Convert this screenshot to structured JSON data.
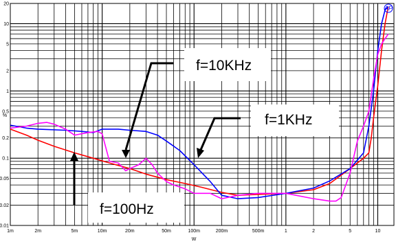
{
  "chart_data": {
    "type": "line",
    "title": "",
    "xlabel": "W",
    "ylabel": "%",
    "x_scale": "log",
    "y_scale": "log",
    "xlim": [
      0.001,
      15
    ],
    "ylim": [
      0.01,
      20
    ],
    "grid": true,
    "x_ticks": [
      {
        "value": 0.001,
        "label": "1m"
      },
      {
        "value": 0.002,
        "label": "2m"
      },
      {
        "value": 0.005,
        "label": "5m"
      },
      {
        "value": 0.01,
        "label": "10m"
      },
      {
        "value": 0.02,
        "label": "20m"
      },
      {
        "value": 0.05,
        "label": "50m"
      },
      {
        "value": 0.1,
        "label": "100m"
      },
      {
        "value": 0.2,
        "label": "200m"
      },
      {
        "value": 0.5,
        "label": "500m"
      },
      {
        "value": 1,
        "label": "1"
      },
      {
        "value": 2,
        "label": "2"
      },
      {
        "value": 5,
        "label": "5"
      },
      {
        "value": 10,
        "label": "10"
      }
    ],
    "y_ticks": [
      {
        "value": 0.01,
        "label": "0.01"
      },
      {
        "value": 0.02,
        "label": "0.02"
      },
      {
        "value": 0.05,
        "label": "0.05"
      },
      {
        "value": 0.1,
        "label": "0.1"
      },
      {
        "value": 0.2,
        "label": "0.2"
      },
      {
        "value": 0.5,
        "label": "0.5"
      },
      {
        "value": 1,
        "label": "1"
      },
      {
        "value": 2,
        "label": "2"
      },
      {
        "value": 5,
        "label": "5"
      },
      {
        "value": 10,
        "label": "10"
      },
      {
        "value": 20,
        "label": "20"
      }
    ],
    "series": [
      {
        "color": "#ff0000",
        "points": [
          [
            0.001,
            0.27
          ],
          [
            0.0015,
            0.22
          ],
          [
            0.002,
            0.185
          ],
          [
            0.003,
            0.15
          ],
          [
            0.005,
            0.12
          ],
          [
            0.008,
            0.1
          ],
          [
            0.012,
            0.085
          ],
          [
            0.02,
            0.07
          ],
          [
            0.03,
            0.058
          ],
          [
            0.05,
            0.048
          ],
          [
            0.08,
            0.042
          ],
          [
            0.12,
            0.037
          ],
          [
            0.2,
            0.031
          ],
          [
            0.3,
            0.028
          ],
          [
            0.5,
            0.029
          ],
          [
            1,
            0.03
          ],
          [
            2,
            0.034
          ],
          [
            3,
            0.042
          ],
          [
            5,
            0.07
          ],
          [
            7,
            0.1
          ],
          [
            8,
            0.12
          ],
          [
            8.5,
            0.2
          ],
          [
            9,
            0.4
          ],
          [
            10,
            1.2
          ],
          [
            11,
            4.0
          ],
          [
            12,
            10.0
          ],
          [
            13,
            18.0
          ]
        ]
      },
      {
        "color": "#0000ff",
        "points": [
          [
            0.001,
            0.31
          ],
          [
            0.0015,
            0.28
          ],
          [
            0.002,
            0.27
          ],
          [
            0.004,
            0.26
          ],
          [
            0.006,
            0.25
          ],
          [
            0.008,
            0.24
          ],
          [
            0.01,
            0.27
          ],
          [
            0.015,
            0.27
          ],
          [
            0.02,
            0.26
          ],
          [
            0.03,
            0.25
          ],
          [
            0.04,
            0.22
          ],
          [
            0.05,
            0.18
          ],
          [
            0.07,
            0.13
          ],
          [
            0.1,
            0.08
          ],
          [
            0.15,
            0.045
          ],
          [
            0.2,
            0.028
          ],
          [
            0.3,
            0.025
          ],
          [
            0.5,
            0.026
          ],
          [
            1,
            0.03
          ],
          [
            2,
            0.036
          ],
          [
            3,
            0.046
          ],
          [
            5,
            0.07
          ],
          [
            7,
            0.12
          ],
          [
            8,
            0.3
          ],
          [
            9,
            1.0
          ],
          [
            10,
            4.0
          ],
          [
            11,
            10.0
          ],
          [
            12,
            16.0
          ],
          [
            13,
            18.0
          ]
        ]
      },
      {
        "color": "#ff00ff",
        "points": [
          [
            0.001,
            0.28
          ],
          [
            0.0015,
            0.3
          ],
          [
            0.002,
            0.33
          ],
          [
            0.0025,
            0.34
          ],
          [
            0.003,
            0.32
          ],
          [
            0.004,
            0.27
          ],
          [
            0.005,
            0.22
          ],
          [
            0.007,
            0.24
          ],
          [
            0.009,
            0.25
          ],
          [
            0.01,
            0.23
          ],
          [
            0.012,
            0.09
          ],
          [
            0.015,
            0.085
          ],
          [
            0.018,
            0.065
          ],
          [
            0.02,
            0.07
          ],
          [
            0.025,
            0.08
          ],
          [
            0.03,
            0.1
          ],
          [
            0.035,
            0.08
          ],
          [
            0.04,
            0.06
          ],
          [
            0.05,
            0.045
          ],
          [
            0.06,
            0.04
          ],
          [
            0.08,
            0.035
          ],
          [
            0.1,
            0.03
          ],
          [
            0.15,
            0.03
          ],
          [
            0.2,
            0.025
          ],
          [
            0.3,
            0.028
          ],
          [
            0.5,
            0.03
          ],
          [
            1,
            0.03
          ],
          [
            2,
            0.025
          ],
          [
            3,
            0.023
          ],
          [
            3.5,
            0.023
          ],
          [
            4,
            0.026
          ],
          [
            5,
            0.06
          ],
          [
            6,
            0.18
          ],
          [
            7,
            0.3
          ],
          [
            8,
            0.5
          ],
          [
            9,
            1.5
          ],
          [
            10,
            3.5
          ],
          [
            11,
            5.0
          ],
          [
            12,
            6.0
          ],
          [
            13,
            7.0
          ]
        ]
      }
    ],
    "annotations": [
      {
        "text": "f=10KHz"
      },
      {
        "text": "f=1KHz"
      },
      {
        "text": "f=100Hz"
      }
    ],
    "logo": "AP"
  }
}
